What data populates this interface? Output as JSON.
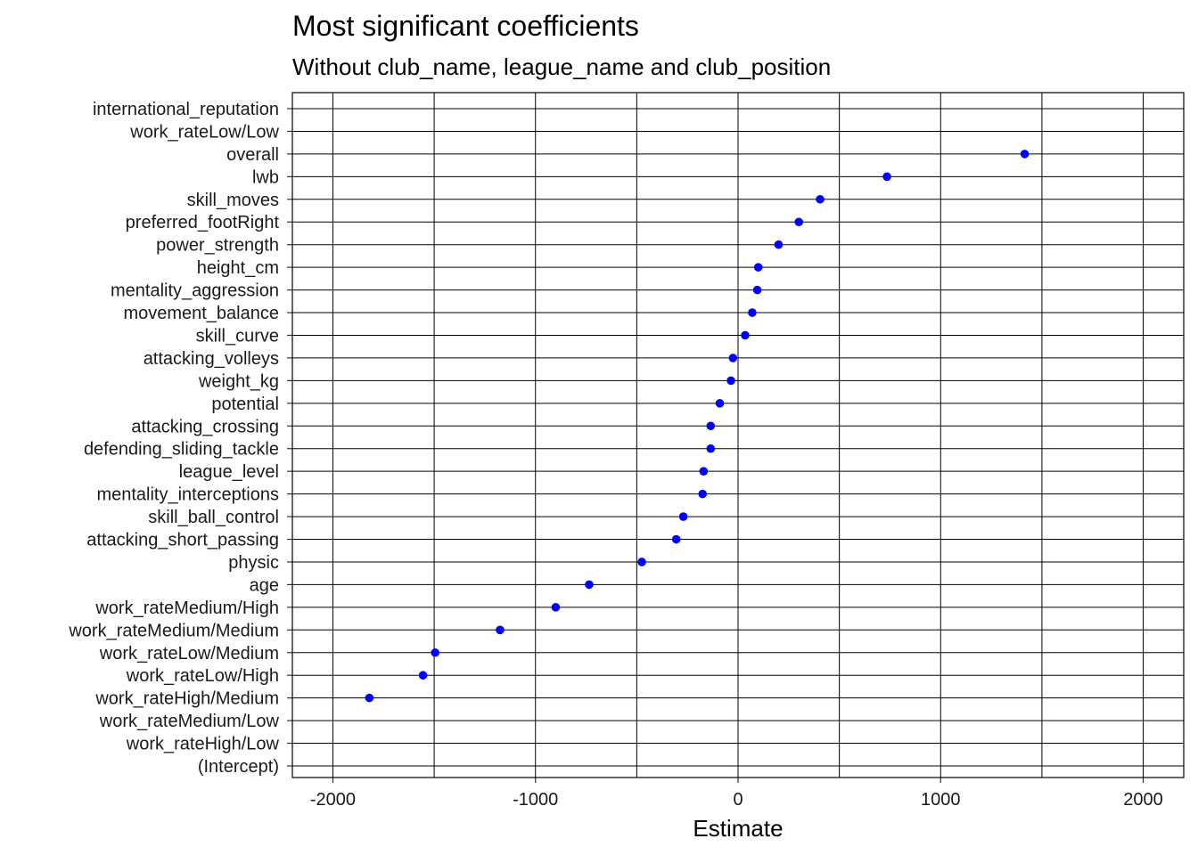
{
  "chart_data": {
    "type": "scatter",
    "title": "Most significant coefficients",
    "subtitle": "Without club_name, league_name and club_position",
    "xlabel": "Estimate",
    "ylabel": "",
    "xlim": [
      -2200,
      2200
    ],
    "xticks": [
      -2000,
      -1000,
      0,
      1000,
      2000
    ],
    "xtick_labels": [
      "-2000",
      "-1000",
      "0",
      "1000",
      "2000"
    ],
    "grid": true,
    "legend": "none",
    "point_color": "#0000ff",
    "categories": [
      "international_reputation",
      "work_rateLow/Low",
      "overall",
      "lwb",
      "skill_moves",
      "preferred_footRight",
      "power_strength",
      "height_cm",
      "mentality_aggression",
      "movement_balance",
      "skill_curve",
      "attacking_volleys",
      "weight_kg",
      "potential",
      "attacking_crossing",
      "defending_sliding_tackle",
      "league_level",
      "mentality_interceptions",
      "skill_ball_control",
      "attacking_short_passing",
      "physic",
      "age",
      "work_rateMedium/High",
      "work_rateMedium/Medium",
      "work_rateLow/Medium",
      "work_rateLow/High",
      "work_rateHigh/Medium",
      "work_rateMedium/Low",
      "work_rateHigh/Low",
      "(Intercept)"
    ],
    "values": [
      null,
      null,
      1415,
      735,
      405,
      300,
      200,
      100,
      95,
      70,
      35,
      -25,
      -35,
      -90,
      -135,
      -135,
      -170,
      -175,
      -270,
      -305,
      -475,
      -735,
      -900,
      -1175,
      -1495,
      -1555,
      -1820,
      null,
      null,
      null
    ]
  }
}
